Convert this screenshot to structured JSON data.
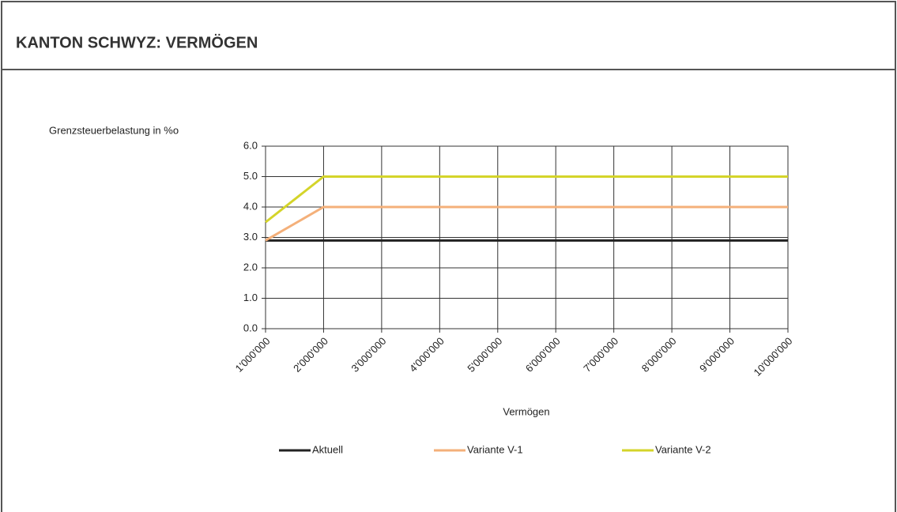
{
  "chart_data": {
    "type": "line",
    "title": "KANTON SCHWYZ: VERMÖGEN",
    "y_label": "Grenzsteuerbelastung in %o",
    "x_label": "Vermögen",
    "categories": [
      "1'000'000",
      "2'000'000",
      "3'000'000",
      "4'000'000",
      "5'000'000",
      "6'000'000",
      "7'000'000",
      "8'000'000",
      "9'000'000",
      "10'000'000"
    ],
    "series": [
      {
        "name": "Aktuell",
        "color": "#222222",
        "values": [
          2.9,
          2.9,
          2.9,
          2.9,
          2.9,
          2.9,
          2.9,
          2.9,
          2.9,
          2.9
        ]
      },
      {
        "name": "Variante V-1",
        "color": "#f4b07a",
        "values": [
          2.9,
          4.0,
          4.0,
          4.0,
          4.0,
          4.0,
          4.0,
          4.0,
          4.0,
          4.0
        ]
      },
      {
        "name": "Variante V-2",
        "color": "#d4d42a",
        "values": [
          3.5,
          5.0,
          5.0,
          5.0,
          5.0,
          5.0,
          5.0,
          5.0,
          5.0,
          5.0
        ]
      }
    ],
    "ylim": [
      0,
      6
    ],
    "yticks": [
      {
        "value": 0,
        "label": "0.0"
      },
      {
        "value": 1,
        "label": "1.0"
      },
      {
        "value": 2,
        "label": "2.0"
      },
      {
        "value": 3,
        "label": "3.0"
      },
      {
        "value": 4,
        "label": "4.0"
      },
      {
        "value": 5,
        "label": "5.0"
      },
      {
        "value": 6,
        "label": "6.0"
      }
    ],
    "grid": true,
    "legend": "bottom"
  }
}
